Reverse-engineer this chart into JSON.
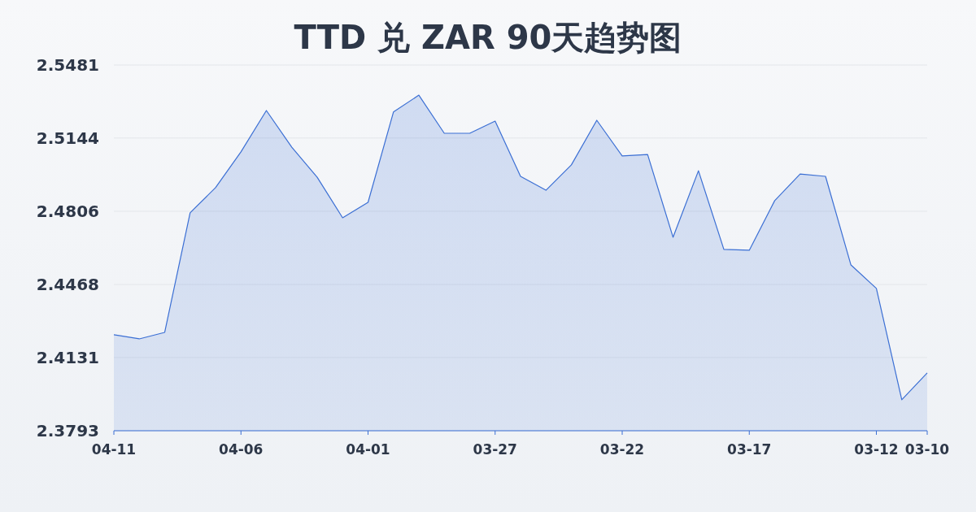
{
  "chart_data": {
    "type": "area",
    "title": "TTD 兑 ZAR 90天趋势图",
    "categories": [
      "04-11",
      null,
      null,
      null,
      null,
      "04-06",
      null,
      null,
      null,
      null,
      "04-01",
      null,
      null,
      null,
      null,
      "03-27",
      null,
      null,
      null,
      null,
      "03-22",
      null,
      null,
      null,
      null,
      "03-17",
      null,
      null,
      null,
      null,
      "03-12",
      null,
      "03-10"
    ],
    "series": [
      {
        "color": "#3b6fd4",
        "values": [
          2.4236,
          2.4217,
          2.4247,
          2.4799,
          2.4915,
          2.508,
          2.5271,
          2.5102,
          2.4963,
          2.4776,
          2.4847,
          2.5264,
          2.5342,
          2.5166,
          2.5166,
          2.5222,
          2.4967,
          2.4903,
          2.502,
          2.5226,
          2.5061,
          2.5068,
          2.4686,
          2.4993,
          2.463,
          2.4626,
          2.4855,
          2.4978,
          2.4967,
          2.4558,
          2.445,
          2.3936,
          2.406
        ]
      }
    ],
    "ylim": [
      2.3793,
      2.5481
    ],
    "yticks": [
      2.3793,
      2.4131,
      2.4468,
      2.4806,
      2.5144,
      2.5481
    ],
    "grid": "y"
  }
}
